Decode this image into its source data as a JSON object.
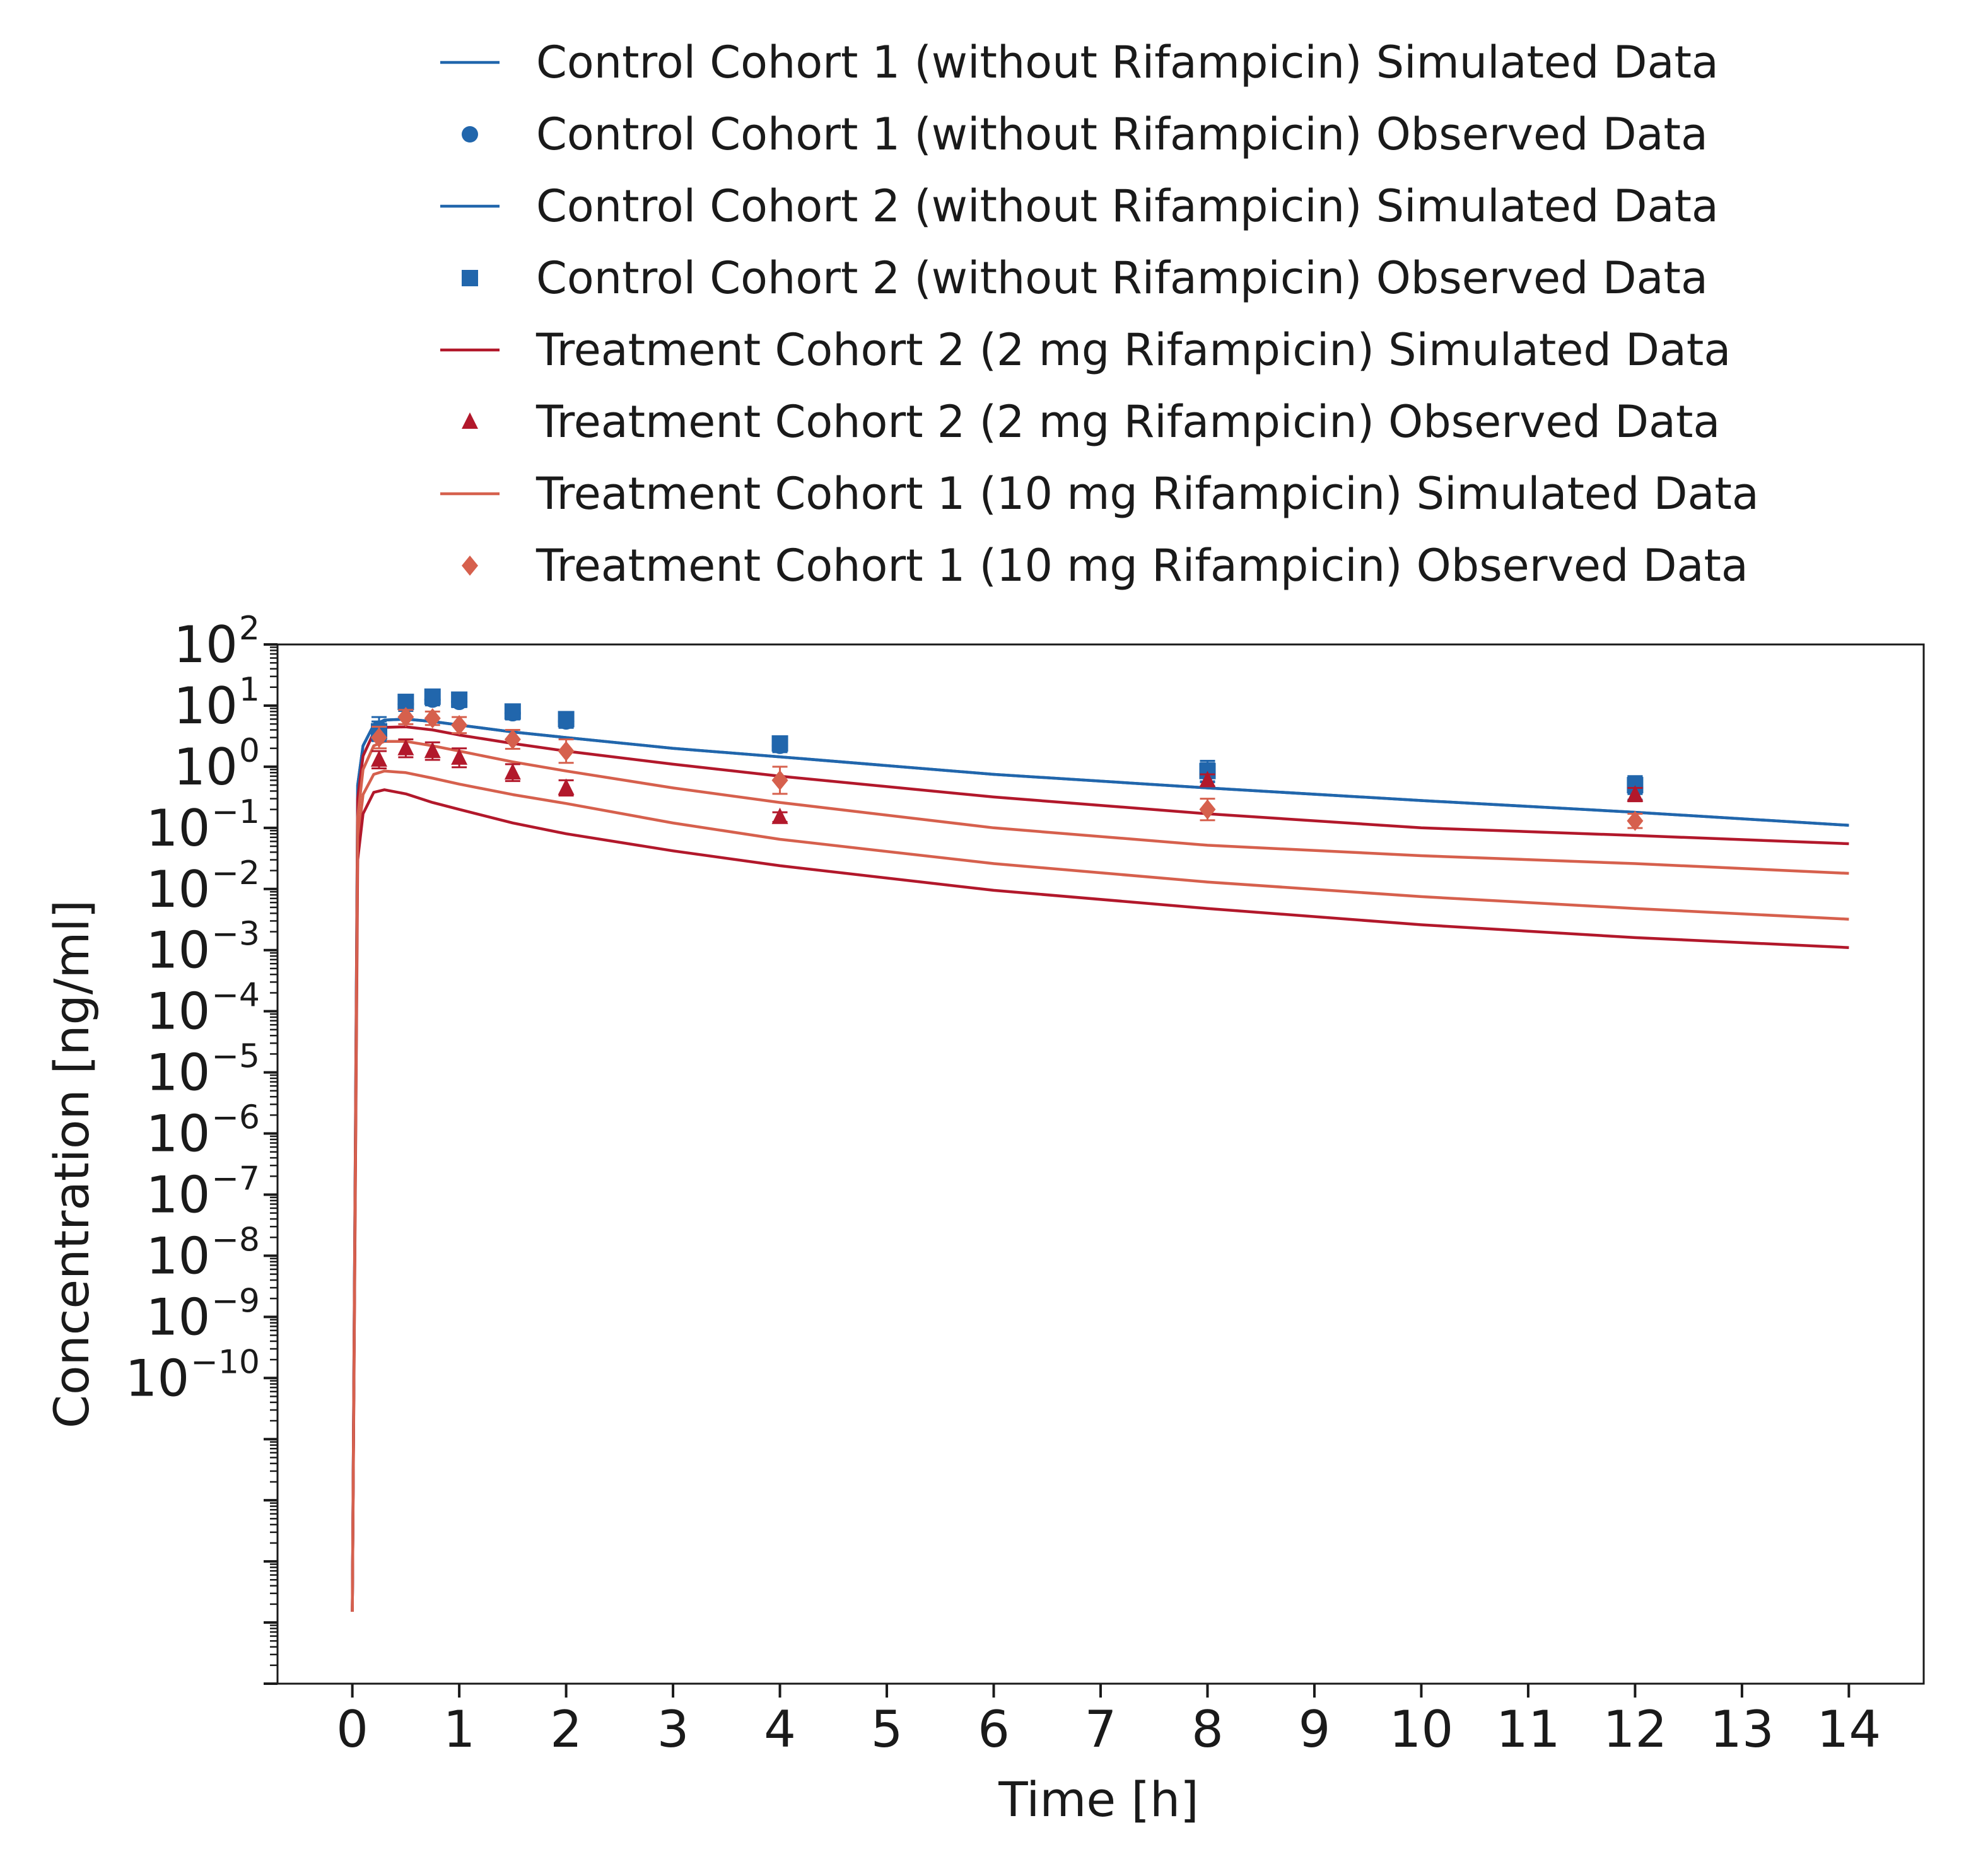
{
  "chart_data": {
    "type": "line",
    "title": "",
    "xlabel": "Time [h]",
    "ylabel": "Concentration [ng/ml]",
    "xlim": [
      -0.7,
      14.7
    ],
    "ylim_log10": [
      -15,
      2
    ],
    "y_scale": "log",
    "grid": false,
    "legend_position": "top",
    "x_ticks": [
      "0",
      "1",
      "2",
      "3",
      "4",
      "5",
      "6",
      "7",
      "8",
      "9",
      "10",
      "11",
      "12",
      "13",
      "14"
    ],
    "y_ticks": [
      {
        "base": "10",
        "exp": "2"
      },
      {
        "base": "10",
        "exp": "1"
      },
      {
        "base": "10",
        "exp": "0"
      },
      {
        "base": "10",
        "exp": "−1"
      },
      {
        "base": "10",
        "exp": "−2"
      },
      {
        "base": "10",
        "exp": "−3"
      },
      {
        "base": "10",
        "exp": "−4"
      },
      {
        "base": "10",
        "exp": "−5"
      },
      {
        "base": "10",
        "exp": "−6"
      },
      {
        "base": "10",
        "exp": "−7"
      },
      {
        "base": "10",
        "exp": "−8"
      },
      {
        "base": "10",
        "exp": "−9"
      },
      {
        "base": "10",
        "exp": "−10"
      }
    ],
    "series": [
      {
        "name": "Control Cohort 1 (without Rifampicin) Simulated Data",
        "kind": "line",
        "color": "#2166ac",
        "points": [
          [
            0,
            1.5e-14
          ],
          [
            0.05,
            0.5
          ],
          [
            0.1,
            2.2
          ],
          [
            0.2,
            4.8
          ],
          [
            0.3,
            5.8
          ],
          [
            0.5,
            6.0
          ],
          [
            0.75,
            5.5
          ],
          [
            1,
            4.8
          ],
          [
            1.5,
            3.7
          ],
          [
            2,
            3.0
          ],
          [
            3,
            2.0
          ],
          [
            4,
            1.45
          ],
          [
            6,
            0.75
          ],
          [
            8,
            0.45
          ],
          [
            10,
            0.28
          ],
          [
            12,
            0.18
          ],
          [
            14,
            0.11
          ]
        ]
      },
      {
        "name": "Control Cohort 1 (without Rifampicin) Observed Data",
        "kind": "scatter",
        "marker": "circle",
        "color": "#2166ac",
        "points": [
          [
            0.25,
            4.2
          ],
          [
            0.5,
            10.5
          ],
          [
            0.75,
            12.5
          ],
          [
            1,
            11.5
          ],
          [
            1.5,
            7.5
          ],
          [
            2,
            5.5
          ],
          [
            4,
            2.2
          ],
          [
            8,
            0.8
          ],
          [
            12,
            0.45
          ]
        ],
        "err_hi": [
          6.5,
          13.5,
          15.5,
          14.0,
          9.5,
          7.0,
          2.8,
          1.15,
          0.7
        ]
      },
      {
        "name": "Control Cohort 2 (without Rifampicin) Simulated Data",
        "kind": "line",
        "color": "#2166ac",
        "points": [
          [
            0,
            1.5e-14
          ],
          [
            0.05,
            0.5
          ],
          [
            0.1,
            2.2
          ],
          [
            0.2,
            4.8
          ],
          [
            0.3,
            5.8
          ],
          [
            0.5,
            6.0
          ],
          [
            0.75,
            5.5
          ],
          [
            1,
            4.8
          ],
          [
            1.5,
            3.7
          ],
          [
            2,
            3.0
          ],
          [
            3,
            2.0
          ],
          [
            4,
            1.45
          ],
          [
            6,
            0.75
          ],
          [
            8,
            0.45
          ],
          [
            10,
            0.28
          ],
          [
            12,
            0.18
          ],
          [
            14,
            0.11
          ]
        ]
      },
      {
        "name": "Control Cohort 2 (without Rifampicin) Observed Data",
        "kind": "scatter",
        "marker": "square",
        "color": "#2166ac",
        "points": [
          [
            0.25,
            3.8
          ],
          [
            0.5,
            11.5
          ],
          [
            0.75,
            14.0
          ],
          [
            1,
            12.5
          ],
          [
            1.5,
            8.0
          ],
          [
            2,
            6.0
          ],
          [
            4,
            2.4
          ],
          [
            8,
            0.85
          ],
          [
            12,
            0.5
          ]
        ],
        "err_hi": [
          5.5,
          14.0,
          16.5,
          15.0,
          10.0,
          7.5,
          3.0,
          1.25,
          0.7
        ]
      },
      {
        "name": "Treatment Cohort 2 (2 mg Rifampicin) Simulated Data",
        "kind": "line",
        "color": "#b2182b",
        "points": [
          [
            0,
            1.5e-14
          ],
          [
            0.05,
            0.3
          ],
          [
            0.1,
            1.5
          ],
          [
            0.2,
            3.6
          ],
          [
            0.3,
            4.4
          ],
          [
            0.5,
            4.5
          ],
          [
            0.75,
            4.0
          ],
          [
            1,
            3.3
          ],
          [
            1.5,
            2.4
          ],
          [
            2,
            1.8
          ],
          [
            3,
            1.1
          ],
          [
            4,
            0.7
          ],
          [
            6,
            0.32
          ],
          [
            8,
            0.17
          ],
          [
            10,
            0.1
          ],
          [
            12,
            0.075
          ],
          [
            14,
            0.055
          ]
        ]
      },
      {
        "name": "Treatment Cohort 2 (2 mg Rifampicin) Observed Data",
        "kind": "scatter",
        "marker": "triangle",
        "color": "#b2182b",
        "points": [
          [
            0.25,
            1.3
          ],
          [
            0.5,
            2.0
          ],
          [
            0.75,
            1.8
          ],
          [
            1,
            1.4
          ],
          [
            1.5,
            0.8
          ],
          [
            2,
            0.45
          ],
          [
            4,
            0.15
          ],
          [
            8,
            0.6
          ],
          [
            12,
            0.35
          ]
        ],
        "err_hi": [
          1.8,
          2.8,
          2.5,
          2.0,
          1.1,
          0.6,
          0.18,
          0.75,
          0.45
        ]
      },
      {
        "name": "Treatment Cohort 1 (10 mg Rifampicin) Simulated Data",
        "kind": "line",
        "color": "#d6604d",
        "points": [
          [
            0,
            1.5e-14
          ],
          [
            0.05,
            0.15
          ],
          [
            0.1,
            0.9
          ],
          [
            0.2,
            2.2
          ],
          [
            0.3,
            2.6
          ],
          [
            0.5,
            2.6
          ],
          [
            0.75,
            2.2
          ],
          [
            1,
            1.8
          ],
          [
            1.5,
            1.2
          ],
          [
            2,
            0.85
          ],
          [
            3,
            0.45
          ],
          [
            4,
            0.26
          ],
          [
            6,
            0.1
          ],
          [
            8,
            0.052
          ],
          [
            10,
            0.035
          ],
          [
            12,
            0.026
          ],
          [
            14,
            0.018
          ]
        ]
      },
      {
        "name": "Treatment Cohort 1 (10 mg Rifampicin) Observed Data",
        "kind": "scatter",
        "marker": "diamond",
        "color": "#d6604d",
        "points": [
          [
            0.25,
            3.0
          ],
          [
            0.5,
            6.5
          ],
          [
            0.75,
            6.2
          ],
          [
            1,
            4.8
          ],
          [
            1.5,
            2.8
          ],
          [
            2,
            1.8
          ],
          [
            4,
            0.6
          ],
          [
            8,
            0.2
          ],
          [
            12,
            0.13
          ]
        ],
        "err_hi": [
          4.5,
          8.5,
          8.0,
          6.5,
          4.0,
          2.8,
          1.0,
          0.3,
          0.17
        ]
      }
    ],
    "extra_lines": [
      {
        "color": "#d6604d",
        "points": [
          [
            0,
            1.5e-14
          ],
          [
            0.05,
            0.06
          ],
          [
            0.1,
            0.35
          ],
          [
            0.2,
            0.75
          ],
          [
            0.3,
            0.85
          ],
          [
            0.5,
            0.8
          ],
          [
            0.75,
            0.65
          ],
          [
            1,
            0.52
          ],
          [
            1.5,
            0.35
          ],
          [
            2,
            0.25
          ],
          [
            3,
            0.12
          ],
          [
            4,
            0.065
          ],
          [
            6,
            0.026
          ],
          [
            8,
            0.013
          ],
          [
            10,
            0.0075
          ],
          [
            12,
            0.0048
          ],
          [
            14,
            0.0032
          ]
        ]
      },
      {
        "color": "#b2182b",
        "points": [
          [
            0,
            1.5e-14
          ],
          [
            0.05,
            0.03
          ],
          [
            0.1,
            0.17
          ],
          [
            0.2,
            0.38
          ],
          [
            0.3,
            0.42
          ],
          [
            0.5,
            0.36
          ],
          [
            0.75,
            0.26
          ],
          [
            1,
            0.2
          ],
          [
            1.5,
            0.12
          ],
          [
            2,
            0.08
          ],
          [
            3,
            0.042
          ],
          [
            4,
            0.024
          ],
          [
            6,
            0.0095
          ],
          [
            8,
            0.0048
          ],
          [
            10,
            0.0026
          ],
          [
            12,
            0.0016
          ],
          [
            14,
            0.0011
          ]
        ]
      }
    ]
  }
}
